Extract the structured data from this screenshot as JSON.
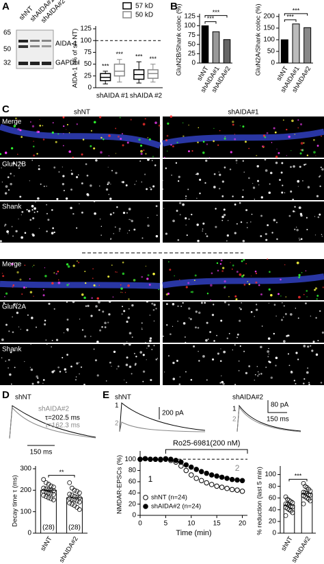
{
  "chart_data": [
    {
      "type": "box",
      "ylabel": "AIDA-1 (% of sh NT)",
      "categories": [
        "shAIDA #1",
        "shAIDA #2"
      ],
      "series": [
        {
          "name": "57 kD",
          "color": "#000000",
          "values": [
            [
              8,
              15,
              22,
              30,
              35
            ],
            [
              10,
              18,
              28,
              38,
              55
            ]
          ],
          "sig": [
            "***",
            "***"
          ]
        },
        {
          "name": "50 kD",
          "color": "#888888",
          "values": [
            [
              12,
              25,
              35,
              50,
              60
            ],
            [
              12,
              20,
              30,
              38,
              50
            ]
          ],
          "sig": [
            "***",
            "***"
          ]
        }
      ],
      "ylim": [
        0,
        125
      ],
      "yticks": [
        0,
        25,
        50,
        75,
        100,
        125
      ],
      "ref_line": 100
    },
    {
      "type": "bar",
      "ylabel": "GluN2B/Shank coloc (%)",
      "categories": [
        "shNT",
        "shAIDA#1",
        "shAIDA#2"
      ],
      "values": [
        100,
        84,
        63
      ],
      "colors": [
        "#000000",
        "#999999",
        "#666666"
      ],
      "annotations": [
        null,
        "***",
        "***"
      ],
      "ylim": [
        0,
        125
      ],
      "yticks": [
        0,
        25,
        50,
        75,
        100,
        125
      ]
    },
    {
      "type": "bar",
      "ylabel": "GluN2A/Shank coloc (%)",
      "categories": [
        "shNT",
        "shAIDA#1",
        "shAIDA#2"
      ],
      "values": [
        100,
        168,
        152
      ],
      "colors": [
        "#000000",
        "#bbbbbb",
        "#888888"
      ],
      "annotations": [
        null,
        "***",
        "***"
      ],
      "ylim": [
        0,
        200
      ],
      "yticks": [
        0,
        50,
        100,
        150,
        200
      ]
    },
    {
      "type": "bar",
      "ylabel": "Decay time τ (ms)",
      "categories": [
        "shNT",
        "shAIDA#2"
      ],
      "values": [
        200,
        165
      ],
      "colors": [
        "#ffffff",
        "#ffffff"
      ],
      "annotations": [
        null,
        "**"
      ],
      "n_labels": [
        "(28)",
        "(28)"
      ],
      "points": [
        [
          250,
          235,
          228,
          220,
          215,
          210,
          206,
          202,
          200,
          198,
          195,
          192,
          188,
          185,
          180,
          176,
          170,
          165,
          160,
          155
        ],
        [
          235,
          210,
          200,
          195,
          188,
          182,
          178,
          172,
          168,
          165,
          162,
          158,
          155,
          150,
          145,
          140,
          135,
          128,
          120,
          110
        ]
      ],
      "ylim": [
        0,
        300
      ],
      "yticks": [
        0,
        100,
        200,
        300
      ]
    },
    {
      "type": "line",
      "xlabel": "Time (min)",
      "ylabel": "NMDAR-EPSCs (%)",
      "x": [
        0,
        1,
        2,
        3,
        4,
        5,
        6,
        7,
        8,
        9,
        10,
        11,
        12,
        13,
        14,
        15,
        16,
        17,
        18,
        19,
        20
      ],
      "series": [
        {
          "name": "shNT (n=24)",
          "color": "#ffffff",
          "values": [
            100,
            101,
            100,
            100,
            99,
            100,
            98,
            95,
            88,
            80,
            72,
            66,
            62,
            58,
            55,
            52,
            50,
            48,
            46,
            45,
            43
          ]
        },
        {
          "name": "shAIDA#2 (n=24)",
          "color": "#000000",
          "values": [
            100,
            101,
            100,
            100,
            100,
            101,
            100,
            98,
            95,
            90,
            86,
            82,
            78,
            75,
            72,
            70,
            68,
            66,
            64,
            63,
            62
          ]
        }
      ],
      "annotation": {
        "text": "Ro25-6981(200 nM)",
        "x": [
          5,
          21
        ]
      },
      "epoch_labels": [
        {
          "label": "1",
          "x": 2
        },
        {
          "label": "2",
          "x": 19
        }
      ],
      "ref_line": 100,
      "xlim": [
        0,
        21
      ],
      "xticks": [
        0,
        5,
        10,
        15,
        20
      ],
      "ylim": [
        0,
        110
      ],
      "yticks": [
        0,
        20,
        40,
        60,
        80,
        100
      ]
    },
    {
      "type": "bar",
      "ylabel": "% reduction (last 5 min)",
      "categories": [
        "shNT",
        "shAIDA#2"
      ],
      "values": [
        48,
        68
      ],
      "colors": [
        "#ffffff",
        "#ffffff"
      ],
      "annotations": [
        null,
        "***"
      ],
      "points": [
        [
          62,
          58,
          56,
          54,
          52,
          50,
          49,
          48,
          46,
          45,
          44,
          42,
          40,
          38,
          35,
          30
        ],
        [
          85,
          80,
          78,
          75,
          72,
          70,
          69,
          68,
          66,
          65,
          64,
          62,
          60,
          58,
          55,
          50
        ]
      ],
      "ylim": [
        0,
        110
      ],
      "yticks": [
        0,
        20,
        40,
        60,
        80,
        100
      ]
    }
  ],
  "figure": {
    "panels": [
      "A",
      "B",
      "C",
      "D",
      "E"
    ],
    "blot": {
      "lanes": [
        "shNT",
        "shAIDA#1",
        "shAIDA#2"
      ],
      "markers": [
        "65",
        "50",
        "32"
      ],
      "bands": [
        "AIDA-1",
        "GAPDH"
      ]
    },
    "images": {
      "columns": [
        "shNT",
        "shAIDA#1"
      ],
      "rows": [
        "Merge",
        "GluN2B",
        "Shank",
        "Merge",
        "GluN2A",
        "Shank"
      ]
    },
    "traces_D": {
      "labels": [
        "shNT",
        "shAIDA#2"
      ],
      "taus": [
        "τ=202.5 ms",
        "τ=162.3 ms"
      ],
      "scale": "150 ms"
    },
    "traces_E": {
      "titles": [
        "shNT",
        "shAIDA#2"
      ],
      "scales": [
        "200 pA",
        "80 pA",
        "150 ms"
      ],
      "epochs": [
        "1",
        "2"
      ]
    }
  }
}
